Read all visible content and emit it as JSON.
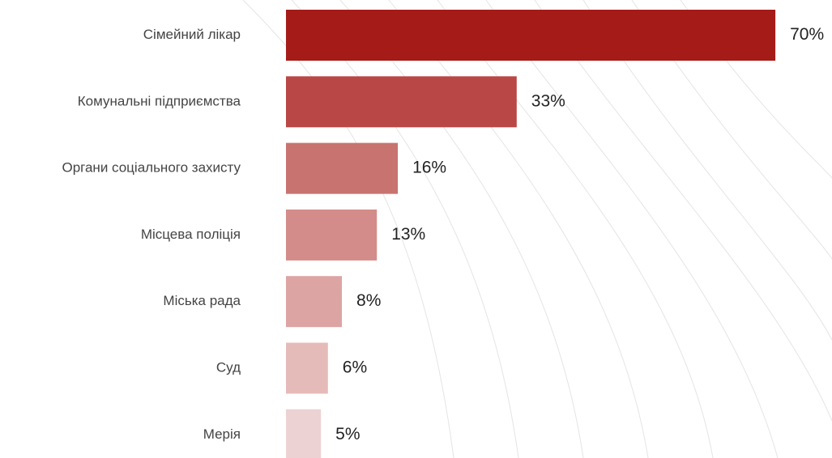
{
  "chart_data": {
    "type": "bar",
    "orientation": "horizontal",
    "categories": [
      "Сімейний лікар",
      "Комунальні підприємства",
      "Органи соціального захисту",
      "Місцева поліція",
      "Міська рада",
      "Суд",
      "Мерія"
    ],
    "values": [
      70,
      33,
      16,
      13,
      8,
      6,
      5
    ],
    "value_labels": [
      "70%",
      "33%",
      "16%",
      "13%",
      "8%",
      "6%",
      "5%"
    ],
    "colors": [
      "#a51b18",
      "#b94745",
      "#c8736f",
      "#d38c89",
      "#dca4a3",
      "#e5bbba",
      "#edd2d3"
    ]
  }
}
